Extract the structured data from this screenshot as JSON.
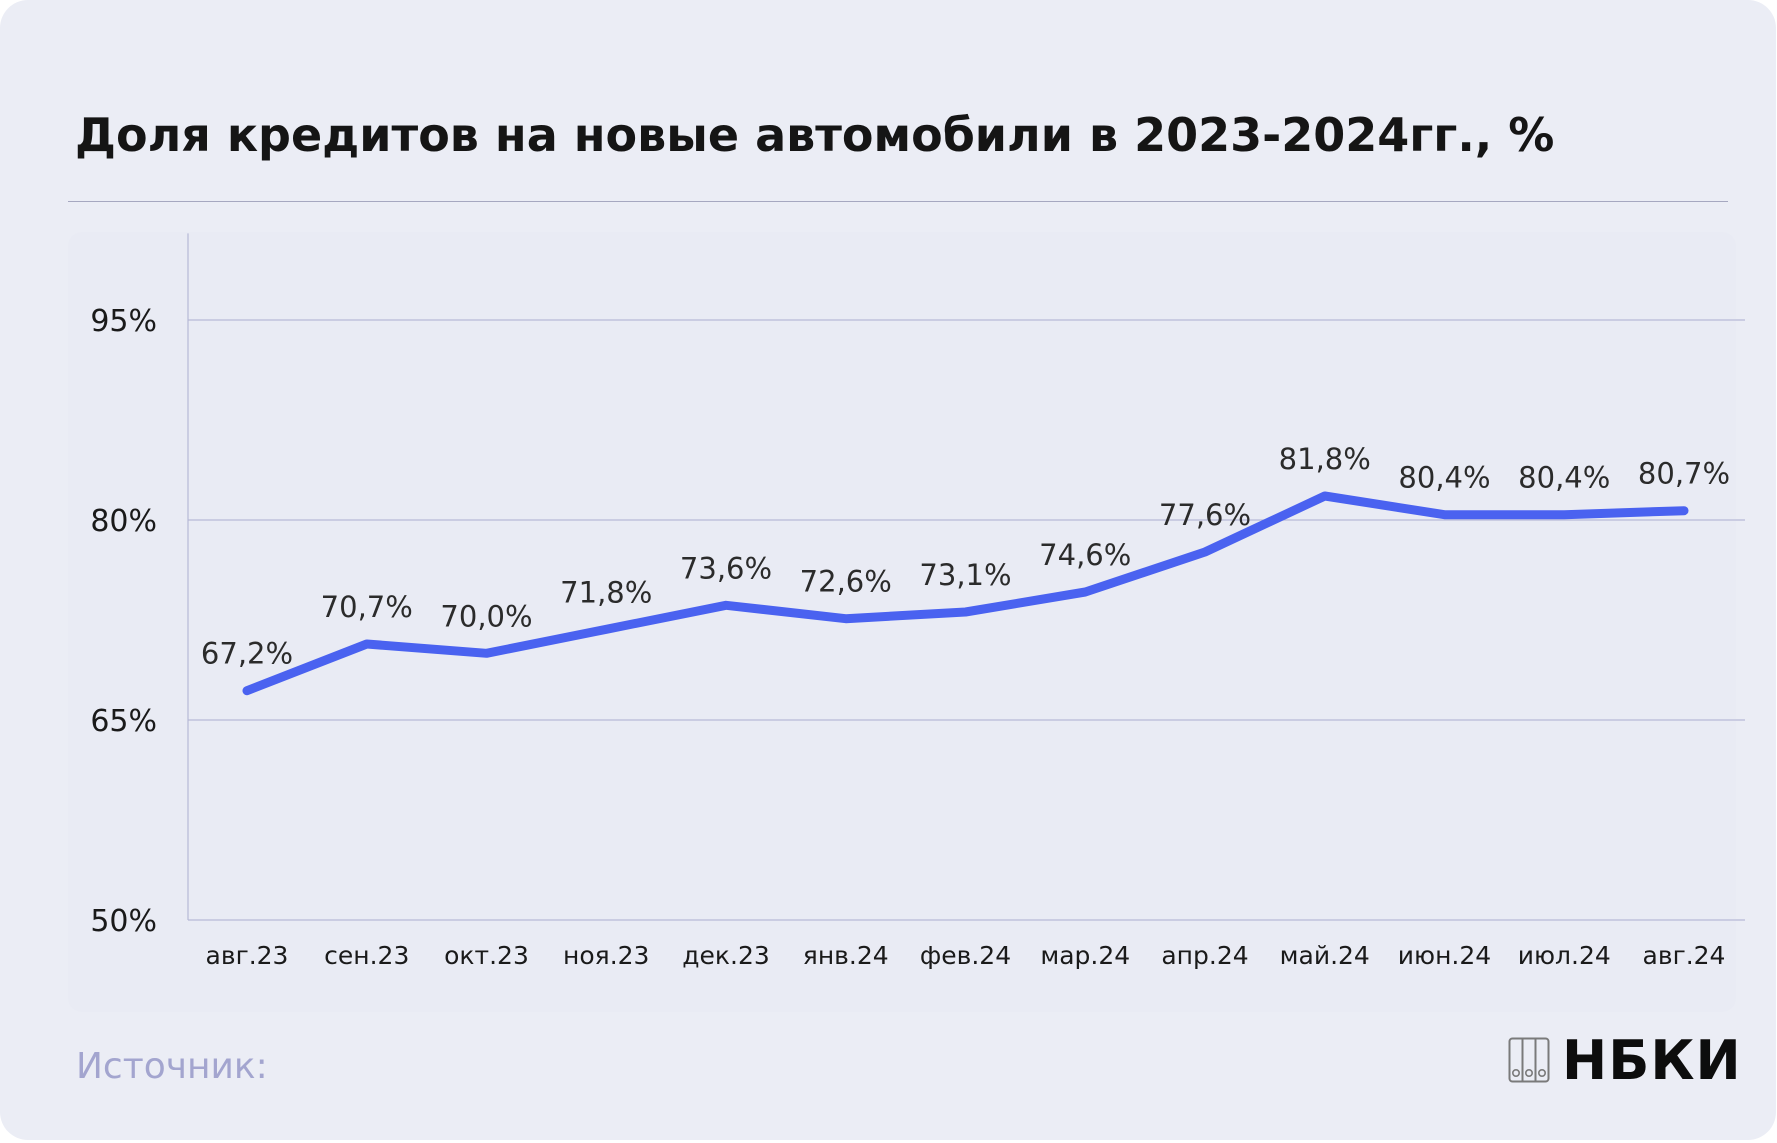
{
  "title": "Доля кредитов на новые автомобили в 2023-2024гг., %",
  "source_label": "Источник:",
  "logo_text": "НБКИ",
  "colors": {
    "line": "#4a62f0",
    "grid": "#b7b9d6",
    "text": "#2b2b2b",
    "source": "#a3a5cf"
  },
  "chart_data": {
    "type": "line",
    "title": "Доля кредитов на новые автомобили в 2023-2024гг., %",
    "xlabel": "",
    "ylabel": "",
    "categories": [
      "авг.23",
      "сен.23",
      "окт.23",
      "ноя.23",
      "дек.23",
      "янв.24",
      "фев.24",
      "мар.24",
      "апр.24",
      "май.24",
      "июн.24",
      "июл.24",
      "авг.24"
    ],
    "series": [
      {
        "values": [
          67.2,
          70.7,
          70.0,
          71.8,
          73.6,
          72.6,
          73.1,
          74.6,
          77.6,
          81.8,
          80.4,
          80.4,
          80.7
        ],
        "labels": [
          "67,2%",
          "70,7%",
          "70,0%",
          "71,8%",
          "73,6%",
          "72,6%",
          "73,1%",
          "74,6%",
          "77,6%",
          "81,8%",
          "80,4%",
          "80,4%",
          "80,7%"
        ]
      }
    ],
    "ylim": [
      50,
      100
    ],
    "yticks": [
      50,
      65,
      80,
      95
    ],
    "ytick_labels": [
      "50%",
      "65%",
      "80%",
      "95%"
    ],
    "grid": "horizontal",
    "legend": "none"
  }
}
